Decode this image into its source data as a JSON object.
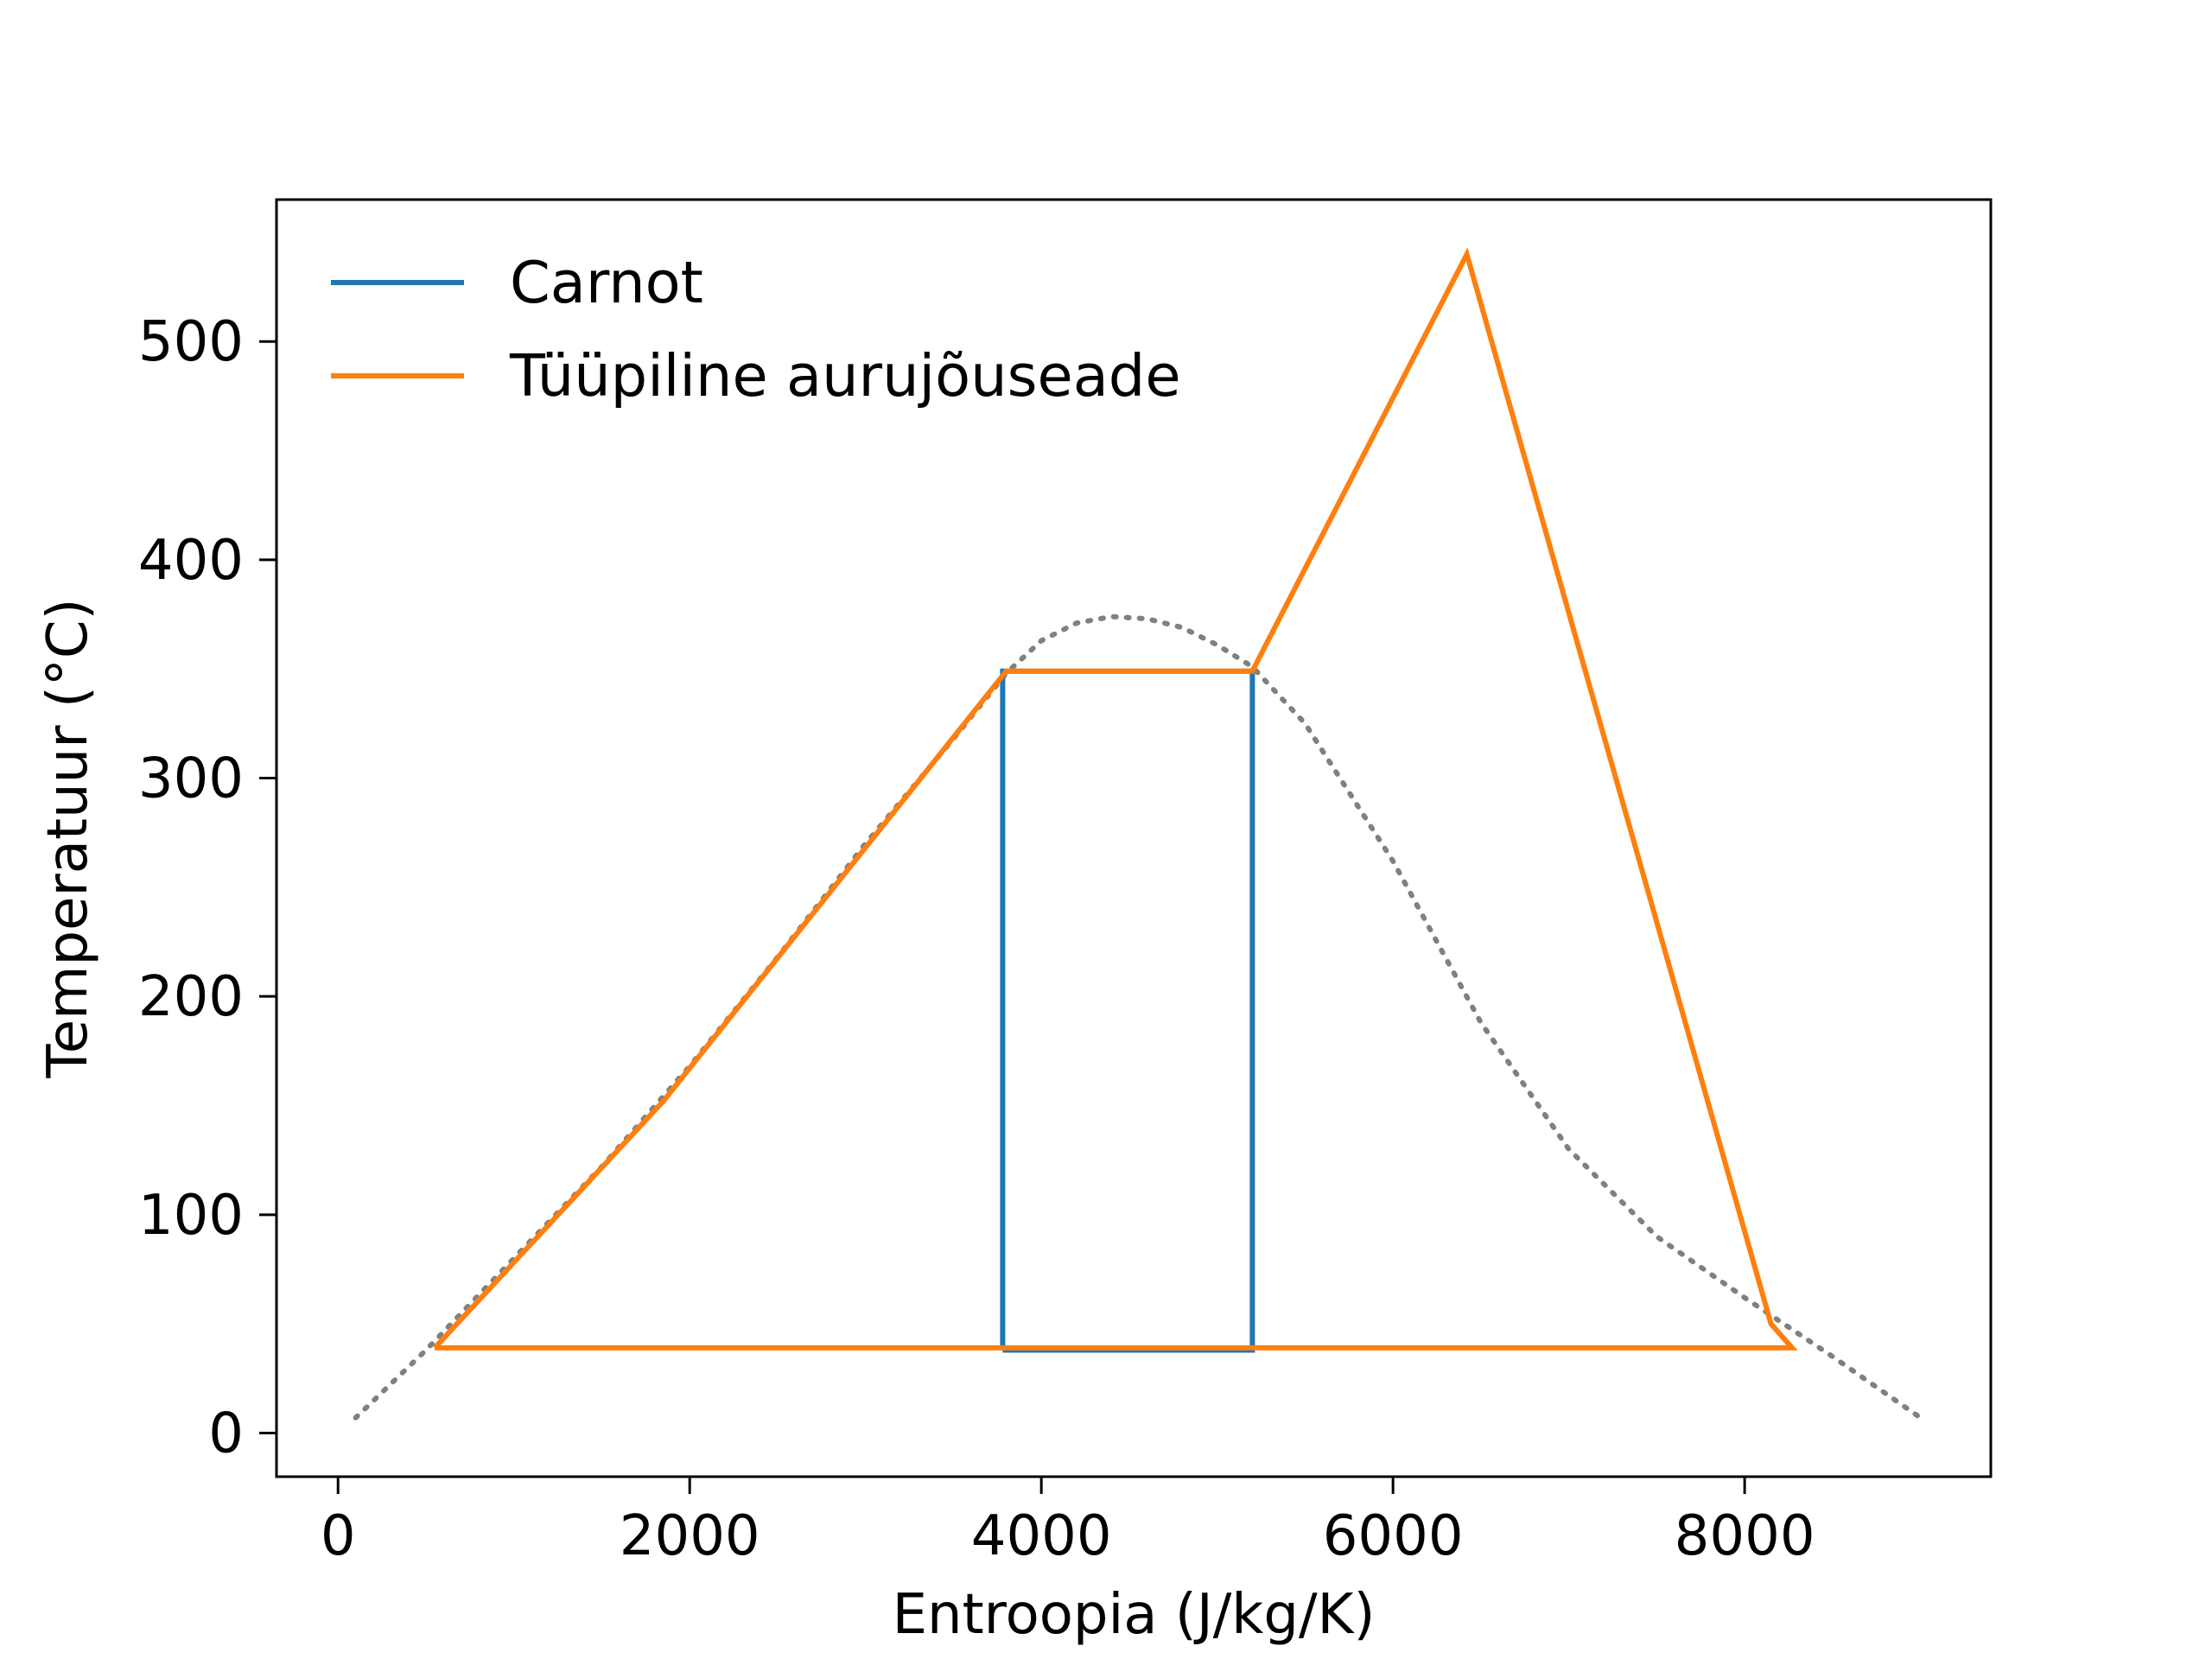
{
  "chart_data": {
    "type": "line",
    "title": "",
    "xlabel": "Entroopia (J/kg/K)",
    "ylabel": "Temperatuur (°C)",
    "xlim": [
      -350,
      9400
    ],
    "ylim": [
      -20,
      565
    ],
    "xticks": [
      0,
      2000,
      4000,
      6000,
      8000
    ],
    "yticks": [
      0,
      100,
      200,
      300,
      400,
      500
    ],
    "grid": false,
    "legend_position": "top-left",
    "dome": {
      "name": "",
      "color": "#808080",
      "style": "dotted",
      "points": [
        [
          100,
          7
        ],
        [
          500,
          38
        ],
        [
          1000,
          80
        ],
        [
          1500,
          122
        ],
        [
          2000,
          168
        ],
        [
          2500,
          218
        ],
        [
          3000,
          270
        ],
        [
          3500,
          318
        ],
        [
          3800,
          348
        ],
        [
          4000,
          363
        ],
        [
          4200,
          371
        ],
        [
          4400,
          374
        ],
        [
          4600,
          373
        ],
        [
          4800,
          369
        ],
        [
          5000,
          361
        ],
        [
          5200,
          351
        ],
        [
          5500,
          325
        ],
        [
          6000,
          262
        ],
        [
          6500,
          188
        ],
        [
          7000,
          130
        ],
        [
          7500,
          90
        ],
        [
          8000,
          62
        ],
        [
          8500,
          35
        ],
        [
          9000,
          7
        ]
      ]
    },
    "series": [
      {
        "name": "Carnot",
        "color": "#1f77b4",
        "points": [
          [
            3780,
            38
          ],
          [
            3780,
            349
          ],
          [
            5200,
            349
          ],
          [
            5200,
            38
          ],
          [
            3780,
            38
          ]
        ]
      },
      {
        "name": "Tüüpiline aurujõuseade",
        "color": "#ff7f0e",
        "points": [
          [
            550,
            39
          ],
          [
            1850,
            152
          ],
          [
            3800,
            349
          ],
          [
            5200,
            349
          ],
          [
            6420,
            540
          ],
          [
            8150,
            50
          ],
          [
            8270,
            39
          ],
          [
            550,
            39
          ]
        ]
      }
    ]
  }
}
